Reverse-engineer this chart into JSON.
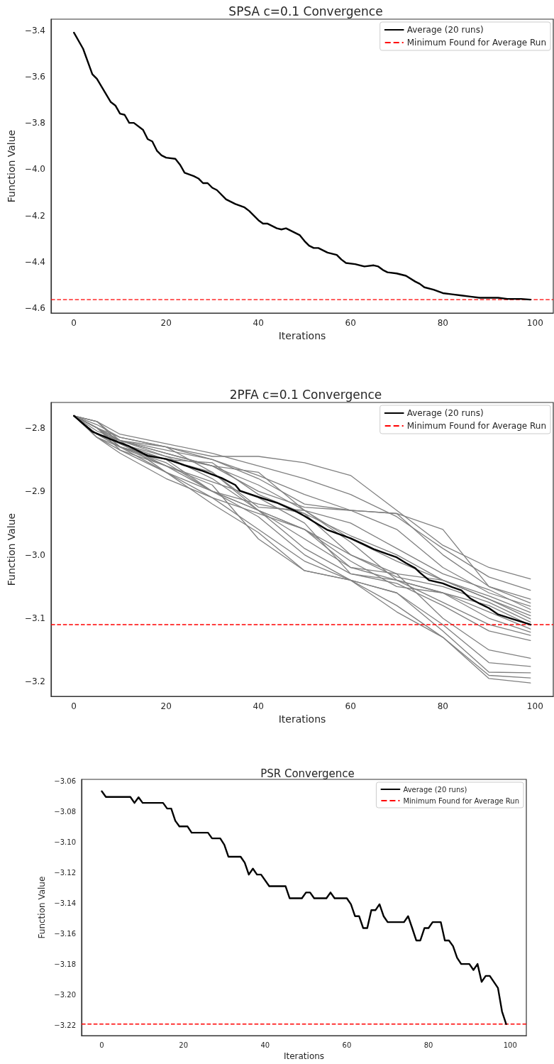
{
  "chart_data": [
    {
      "type": "line",
      "title": "SPSA c=0.1 Convergence",
      "xlabel": "Iterations",
      "ylabel": "Function Value",
      "xlim": [
        -4.95,
        103.95
      ],
      "ylim": [
        -4.621,
        -3.352
      ],
      "xticks": [
        0,
        20,
        40,
        60,
        80,
        100
      ],
      "yticks": [
        {
          "value": -4.6,
          "label": "−4.6"
        },
        {
          "value": -4.4,
          "label": "−4.4"
        },
        {
          "value": -4.2,
          "label": "−4.2"
        },
        {
          "value": -4.0,
          "label": "−4.0"
        },
        {
          "value": -3.8,
          "label": "−3.8"
        },
        {
          "value": -3.6,
          "label": "−3.6"
        },
        {
          "value": -3.4,
          "label": "−3.4"
        }
      ],
      "grid": false,
      "legend": "top right",
      "marker": "none",
      "line_style": "solid",
      "series": [
        {
          "name": "Average (20 runs)",
          "color": "#000000",
          "x": [
            0,
            2,
            4,
            5,
            8,
            9,
            10,
            11,
            12,
            13,
            15,
            16,
            17,
            18,
            19,
            20,
            22,
            23,
            24,
            26,
            27,
            28,
            29,
            30,
            31,
            33,
            35,
            37,
            38,
            39,
            40,
            41,
            42,
            44,
            45,
            46,
            47,
            48,
            49,
            50,
            51,
            52,
            53,
            55,
            57,
            58,
            59,
            61,
            63,
            65,
            66,
            67,
            68,
            70,
            72,
            74,
            75,
            76,
            78,
            80,
            82,
            84,
            86,
            88,
            90,
            92,
            94,
            97,
            99
          ],
          "values": [
            -3.41,
            -3.48,
            -3.59,
            -3.61,
            -3.71,
            -3.725,
            -3.76,
            -3.765,
            -3.8,
            -3.8,
            -3.83,
            -3.87,
            -3.88,
            -3.92,
            -3.94,
            -3.95,
            -3.955,
            -3.98,
            -4.015,
            -4.03,
            -4.04,
            -4.06,
            -4.06,
            -4.08,
            -4.09,
            -4.13,
            -4.15,
            -4.165,
            -4.18,
            -4.2,
            -4.22,
            -4.235,
            -4.235,
            -4.255,
            -4.26,
            -4.255,
            -4.265,
            -4.275,
            -4.285,
            -4.31,
            -4.33,
            -4.34,
            -4.34,
            -4.36,
            -4.37,
            -4.39,
            -4.405,
            -4.41,
            -4.42,
            -4.415,
            -4.42,
            -4.435,
            -4.445,
            -4.45,
            -4.46,
            -4.485,
            -4.495,
            -4.51,
            -4.52,
            -4.535,
            -4.54,
            -4.545,
            -4.55,
            -4.555,
            -4.555,
            -4.555,
            -4.56,
            -4.56,
            -4.563
          ]
        }
      ],
      "ref_lines": [
        {
          "axis": "y",
          "value": -4.563,
          "label": "Minimum Found for Average Run",
          "color": "#ff0000",
          "line_style": "dashed"
        }
      ]
    },
    {
      "type": "line",
      "title": "2PFA c=0.1 Convergence",
      "xlabel": "Iterations",
      "ylabel": "Function Value",
      "xlim": [
        -4.95,
        103.95
      ],
      "ylim": [
        -3.223,
        -2.76
      ],
      "xticks": [
        0,
        20,
        40,
        60,
        80,
        100
      ],
      "yticks": [
        {
          "value": -3.2,
          "label": "−3.2"
        },
        {
          "value": -3.1,
          "label": "−3.1"
        },
        {
          "value": -3.0,
          "label": "−3.0"
        },
        {
          "value": -2.9,
          "label": "−2.9"
        },
        {
          "value": -2.8,
          "label": "−2.8"
        }
      ],
      "grid": false,
      "legend": "top right",
      "marker": "none",
      "line_style": "solid",
      "x": [
        0,
        5,
        10,
        20,
        30,
        40,
        50,
        60,
        70,
        80,
        90,
        99
      ],
      "series": [
        {
          "color": "#808080",
          "values": [
            -2.781,
            -2.8,
            -2.815,
            -2.83,
            -2.845,
            -2.845,
            -2.855,
            -2.875,
            -2.93,
            -2.985,
            -3.02,
            -3.038
          ]
        },
        {
          "color": "#808080",
          "values": [
            -2.781,
            -2.79,
            -2.81,
            -2.825,
            -2.84,
            -2.86,
            -2.88,
            -2.905,
            -2.94,
            -2.99,
            -3.035,
            -3.056
          ]
        },
        {
          "color": "#808080",
          "values": [
            -2.781,
            -2.795,
            -2.815,
            -2.83,
            -2.85,
            -2.875,
            -2.905,
            -2.93,
            -2.935,
            -2.96,
            -3.05,
            -3.07
          ]
        },
        {
          "color": "#808080",
          "values": [
            -2.781,
            -2.8,
            -2.82,
            -2.835,
            -2.85,
            -2.88,
            -2.92,
            -2.93,
            -2.935,
            -3.0,
            -3.05,
            -3.076
          ]
        },
        {
          "color": "#808080",
          "values": [
            -2.781,
            -2.81,
            -2.82,
            -2.84,
            -2.86,
            -2.9,
            -2.925,
            -2.93,
            -2.96,
            -3.02,
            -3.06,
            -3.081
          ]
        },
        {
          "color": "#808080",
          "values": [
            -2.781,
            -2.8,
            -2.825,
            -2.845,
            -2.86,
            -2.89,
            -2.93,
            -2.95,
            -2.99,
            -3.03,
            -3.055,
            -3.086
          ]
        },
        {
          "color": "#808080",
          "values": [
            -2.781,
            -2.815,
            -2.83,
            -2.85,
            -2.855,
            -2.905,
            -2.935,
            -2.97,
            -3.0,
            -3.04,
            -3.065,
            -3.091
          ]
        },
        {
          "color": "#808080",
          "values": [
            -2.781,
            -2.805,
            -2.82,
            -2.83,
            -2.87,
            -2.925,
            -2.93,
            -2.975,
            -3.01,
            -3.04,
            -3.07,
            -3.096
          ]
        },
        {
          "color": "#808080",
          "values": [
            -2.781,
            -2.8,
            -2.82,
            -2.845,
            -2.88,
            -2.93,
            -2.96,
            -3.02,
            -3.03,
            -3.04,
            -3.07,
            -3.101
          ]
        },
        {
          "color": "#808080",
          "values": [
            -2.781,
            -2.81,
            -2.83,
            -2.855,
            -2.9,
            -2.92,
            -2.935,
            -3.0,
            -3.035,
            -3.05,
            -3.075,
            -3.106
          ]
        },
        {
          "color": "#808080",
          "values": [
            -2.781,
            -2.79,
            -2.82,
            -2.84,
            -2.86,
            -2.87,
            -2.93,
            -2.98,
            -3.04,
            -3.06,
            -3.08,
            -3.111
          ]
        },
        {
          "color": "#808080",
          "values": [
            -2.781,
            -2.8,
            -2.83,
            -2.86,
            -2.885,
            -2.91,
            -2.95,
            -3.03,
            -3.04,
            -3.06,
            -3.09,
            -3.117
          ]
        },
        {
          "color": "#808080",
          "values": [
            -2.781,
            -2.81,
            -2.825,
            -2.85,
            -2.87,
            -2.93,
            -2.96,
            -3.01,
            -3.05,
            -3.06,
            -3.1,
            -3.122
          ]
        },
        {
          "color": "#808080",
          "values": [
            -2.781,
            -2.8,
            -2.83,
            -2.85,
            -2.9,
            -2.93,
            -2.975,
            -3.02,
            -3.04,
            -3.075,
            -3.11,
            -3.127
          ]
        },
        {
          "color": "#808080",
          "values": [
            -2.781,
            -2.815,
            -2.835,
            -2.87,
            -2.9,
            -2.93,
            -2.99,
            -3.03,
            -3.045,
            -3.08,
            -3.12,
            -3.135
          ]
        },
        {
          "color": "#808080",
          "values": [
            -2.781,
            -2.8,
            -2.82,
            -2.87,
            -2.91,
            -2.935,
            -2.96,
            -3.0,
            -3.03,
            -3.1,
            -3.15,
            -3.163
          ]
        },
        {
          "color": "#808080",
          "values": [
            -2.781,
            -2.79,
            -2.825,
            -2.86,
            -2.9,
            -2.94,
            -3.0,
            -3.04,
            -3.06,
            -3.11,
            -3.17,
            -3.176
          ]
        },
        {
          "color": "#808080",
          "values": [
            -2.781,
            -2.815,
            -2.84,
            -2.88,
            -2.91,
            -2.96,
            -3.01,
            -3.04,
            -3.06,
            -3.12,
            -3.185,
            -3.186
          ]
        },
        {
          "color": "#808080",
          "values": [
            -2.781,
            -2.81,
            -2.83,
            -2.87,
            -2.92,
            -2.965,
            -3.025,
            -3.04,
            -3.08,
            -3.13,
            -3.19,
            -3.194
          ]
        },
        {
          "color": "#808080",
          "values": [
            -2.781,
            -2.8,
            -2.835,
            -2.86,
            -2.89,
            -2.975,
            -3.025,
            -3.04,
            -3.09,
            -3.13,
            -3.195,
            -3.202
          ]
        },
        {
          "name": "Average (20 runs)",
          "color": "#000000",
          "x": [
            0,
            4,
            8,
            12,
            16,
            20,
            24,
            28,
            32,
            35,
            36,
            40,
            44,
            48,
            50,
            52,
            55,
            60,
            63,
            65,
            68,
            70,
            72,
            74,
            75,
            77,
            80,
            82,
            84,
            86,
            88,
            90,
            92,
            95,
            99
          ],
          "values": [
            -2.781,
            -2.806,
            -2.818,
            -2.829,
            -2.844,
            -2.849,
            -2.859,
            -2.868,
            -2.879,
            -2.89,
            -2.899,
            -2.909,
            -2.918,
            -2.931,
            -2.939,
            -2.948,
            -2.961,
            -2.974,
            -2.984,
            -2.991,
            -2.999,
            -3.004,
            -3.013,
            -3.021,
            -3.028,
            -3.04,
            -3.045,
            -3.051,
            -3.056,
            -3.069,
            -3.077,
            -3.084,
            -3.094,
            -3.101,
            -3.11
          ]
        }
      ],
      "ref_lines": [
        {
          "axis": "y",
          "value": -3.11,
          "label": "Minimum Found for Average Run",
          "color": "#ff0000",
          "line_style": "dashed"
        }
      ]
    },
    {
      "type": "line",
      "title": "PSR Convergence",
      "xlabel": "Iterations",
      "ylabel": "Function Value",
      "xlim": [
        -4.95,
        103.95
      ],
      "ylim": [
        -3.2266,
        -3.0589
      ],
      "xticks": [
        0,
        20,
        40,
        60,
        80,
        100
      ],
      "yticks": [
        {
          "value": -3.22,
          "label": "−3.22"
        },
        {
          "value": -3.2,
          "label": "−3.20"
        },
        {
          "value": -3.18,
          "label": "−3.18"
        },
        {
          "value": -3.16,
          "label": "−3.16"
        },
        {
          "value": -3.14,
          "label": "−3.14"
        },
        {
          "value": -3.12,
          "label": "−3.12"
        },
        {
          "value": -3.1,
          "label": "−3.10"
        },
        {
          "value": -3.08,
          "label": "−3.08"
        },
        {
          "value": -3.06,
          "label": "−3.06"
        }
      ],
      "grid": false,
      "legend": "top right",
      "marker": "none",
      "line_style": "solid",
      "series": [
        {
          "name": "Average (20 runs)",
          "color": "#000000",
          "x": [
            0,
            1,
            7,
            8,
            9,
            10,
            15,
            16,
            17,
            18,
            19,
            21,
            22,
            26,
            27,
            29,
            30,
            31,
            34,
            35,
            36,
            37,
            38,
            39,
            41,
            45,
            46,
            49,
            50,
            51,
            52,
            55,
            56,
            57,
            60,
            61,
            62,
            63,
            64,
            65,
            66,
            67,
            68,
            69,
            70,
            74,
            75,
            76,
            77,
            78,
            79,
            80,
            81,
            83,
            84,
            85,
            86,
            87,
            88,
            90,
            91,
            92,
            93,
            94,
            95,
            96,
            97,
            98,
            99
          ],
          "values": [
            -3.0667,
            -3.0704,
            -3.0704,
            -3.0743,
            -3.0706,
            -3.0743,
            -3.0743,
            -3.078,
            -3.078,
            -3.086,
            -3.0897,
            -3.0897,
            -3.0938,
            -3.0938,
            -3.0975,
            -3.0975,
            -3.1017,
            -3.1095,
            -3.1095,
            -3.1134,
            -3.1212,
            -3.1173,
            -3.1212,
            -3.1212,
            -3.1288,
            -3.1288,
            -3.1367,
            -3.1367,
            -3.1329,
            -3.1329,
            -3.1367,
            -3.1367,
            -3.1329,
            -3.1367,
            -3.1367,
            -3.1406,
            -3.1484,
            -3.1484,
            -3.1562,
            -3.1562,
            -3.1445,
            -3.1445,
            -3.1406,
            -3.1484,
            -3.1523,
            -3.1523,
            -3.1484,
            -3.1562,
            -3.1643,
            -3.1643,
            -3.1562,
            -3.1562,
            -3.1523,
            -3.1523,
            -3.1643,
            -3.1643,
            -3.168,
            -3.1756,
            -3.1797,
            -3.1797,
            -3.1836,
            -3.1797,
            -3.1914,
            -3.1875,
            -3.1875,
            -3.1914,
            -3.1954,
            -3.2108,
            -3.219
          ]
        }
      ],
      "ref_lines": [
        {
          "axis": "y",
          "value": -3.219,
          "label": "Minimum Found for Average Run",
          "color": "#ff0000",
          "line_style": "dashed"
        }
      ]
    }
  ]
}
